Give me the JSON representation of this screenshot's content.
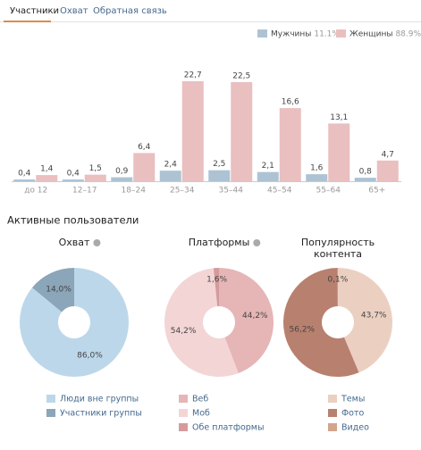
{
  "tabs": {
    "items": [
      "Участники",
      "Охват",
      "Обратная связь"
    ]
  },
  "section_title": "Активные пользователи",
  "chart_data": [
    {
      "type": "bar",
      "categories": [
        "до 12",
        "12–17",
        "18–24",
        "25–34",
        "35–44",
        "45–54",
        "55–64",
        "65+"
      ],
      "series": [
        {
          "name": "Мужчины",
          "share": "11.1%",
          "color": "#adc3d4",
          "values": [
            0.4,
            0.4,
            0.9,
            2.4,
            2.5,
            2.1,
            1.6,
            0.8
          ],
          "value_labels": [
            "0,4",
            "0,4",
            "0,9",
            "2,4",
            "2,5",
            "2,1",
            "1,6",
            "0,8"
          ]
        },
        {
          "name": "Женщины",
          "share": "88.9%",
          "color": "#e9bfc0",
          "values": [
            1.4,
            1.5,
            6.4,
            22.7,
            22.5,
            16.6,
            13.1,
            4.7
          ],
          "value_labels": [
            "1,4",
            "1,5",
            "6,4",
            "22,7",
            "22,5",
            "16,6",
            "13,1",
            "4,7"
          ]
        }
      ]
    },
    {
      "type": "pie",
      "donut": true,
      "title": "Охват",
      "categories": [
        "Люди вне группы",
        "Участники группы"
      ],
      "values": [
        86.0,
        14.0
      ],
      "value_labels": [
        "86,0%",
        "14,0%"
      ],
      "colors": [
        "#bdd7ea",
        "#8ba5b9"
      ]
    },
    {
      "type": "pie",
      "donut": true,
      "title": "Платформы",
      "categories": [
        "Веб",
        "Моб",
        "Обе платформы"
      ],
      "values": [
        44.2,
        54.2,
        1.6
      ],
      "value_labels": [
        "44,2%",
        "54,2%",
        "1,6%"
      ],
      "colors": [
        "#e6b5b6",
        "#f3d5d6",
        "#d59a9b"
      ]
    },
    {
      "type": "pie",
      "donut": true,
      "title": "Популярность контента",
      "categories": [
        "Темы",
        "Фото",
        "Видео"
      ],
      "values": [
        43.7,
        56.2,
        0.1
      ],
      "value_labels": [
        "43,7%",
        "56,2%",
        "0,1%"
      ],
      "colors": [
        "#ebd0c2",
        "#b8806f",
        "#d3a58c"
      ]
    }
  ]
}
